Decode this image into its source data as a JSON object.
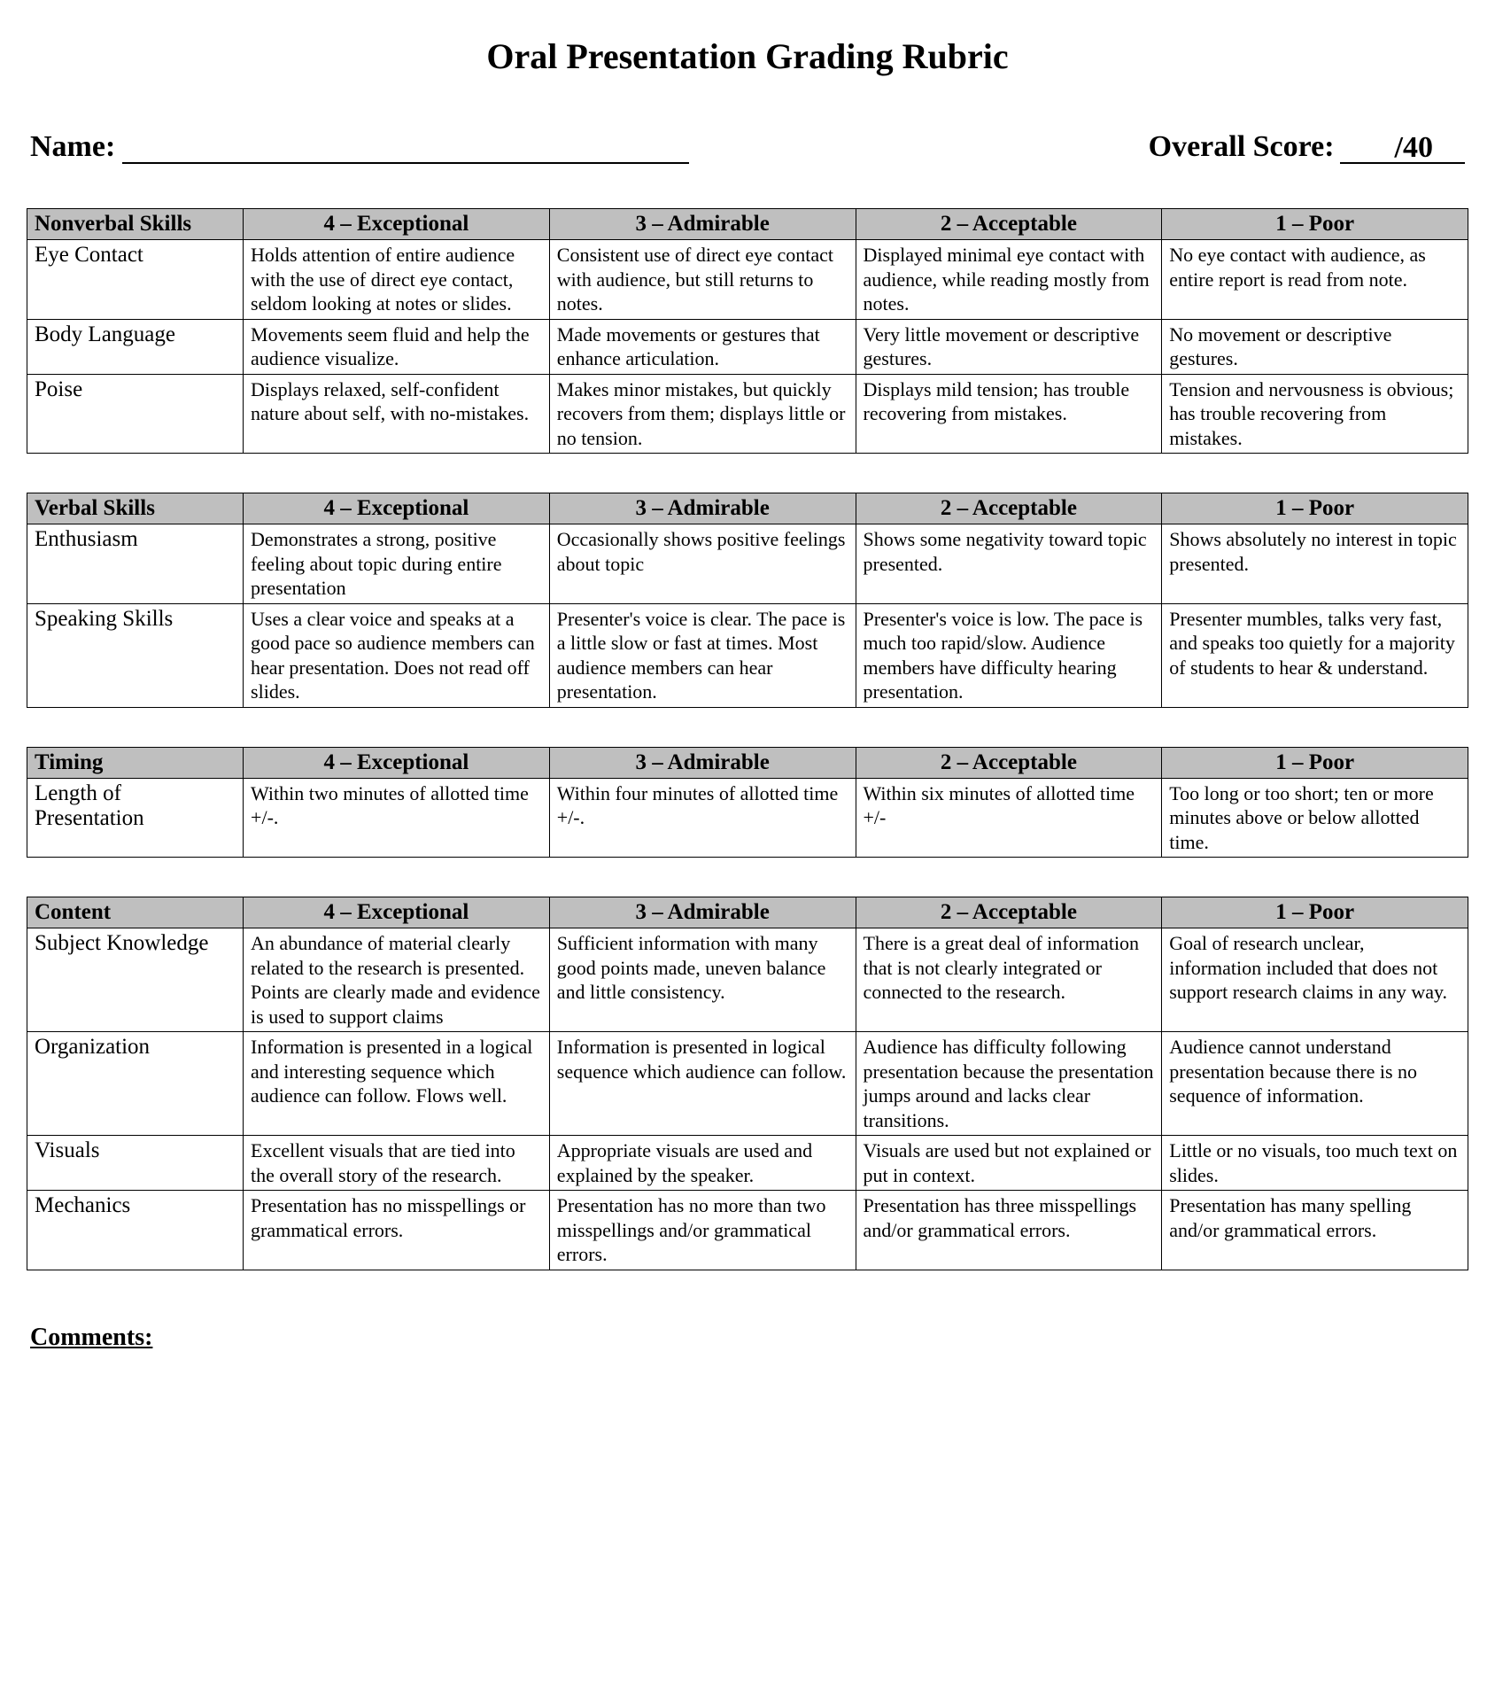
{
  "title": "Oral Presentation Grading Rubric",
  "header": {
    "name_label": "Name:",
    "score_label": "Overall Score:",
    "score_total": "/40"
  },
  "levels": [
    "4 – Exceptional",
    "3 – Admirable",
    "2 – Acceptable",
    "1 – Poor"
  ],
  "sections": [
    {
      "category": "Nonverbal Skills",
      "rows": [
        {
          "label": "Eye Contact",
          "cells": [
            "Holds attention of entire audience with the use of direct eye contact, seldom looking at notes or slides.",
            "Consistent use of direct eye contact with audience, but still returns to notes.",
            "Displayed minimal eye contact with audience, while reading mostly from notes.",
            "No eye contact with audience, as entire report is read from note."
          ]
        },
        {
          "label": "Body Language",
          "cells": [
            "Movements seem fluid and help the audience visualize.",
            "Made movements or gestures that enhance articulation.",
            "Very little movement or descriptive gestures.",
            "No movement or descriptive gestures."
          ]
        },
        {
          "label": "Poise",
          "cells": [
            "Displays relaxed, self-confident nature about self, with no-mistakes.",
            "Makes minor mistakes, but quickly recovers from them; displays little or no tension.",
            "Displays mild tension; has trouble recovering from mistakes.",
            "Tension and nervousness is obvious; has trouble recovering from mistakes."
          ]
        }
      ]
    },
    {
      "category": "Verbal Skills",
      "rows": [
        {
          "label": "Enthusiasm",
          "cells": [
            "Demonstrates a strong, positive feeling about topic during entire presentation",
            "Occasionally shows positive feelings about topic",
            "Shows some negativity toward topic presented.",
            "Shows absolutely no interest in topic presented."
          ]
        },
        {
          "label": "Speaking Skills",
          "cells": [
            "Uses a clear voice and speaks at a good pace so audience members can hear presentation.  Does not read off slides.",
            "Presenter's voice is clear. The pace is a little slow or fast at times.  Most audience members can hear presentation.",
            "Presenter's voice is low. The pace is much too rapid/slow. Audience members have difficulty hearing presentation.",
            "Presenter mumbles, talks very fast, and speaks too quietly for a majority of students to hear & understand."
          ]
        }
      ]
    },
    {
      "category": "Timing",
      "rows": [
        {
          "label": "Length of Presentation",
          "cells": [
            "Within two minutes of allotted time +/-.",
            "Within four minutes of allotted time +/-.",
            "Within six minutes of allotted time +/-",
            "Too long or too short; ten or more minutes above or below allotted time."
          ]
        }
      ]
    },
    {
      "category": "Content",
      "rows": [
        {
          "label": "Subject Knowledge",
          "cells": [
            "An abundance of material clearly related to the research is presented. Points are clearly made and evidence is used to support claims",
            "Sufficient information with many good points made, uneven balance and little consistency.",
            "There is a great deal of information that is not clearly integrated or connected to the research.",
            "Goal of research unclear, information included that does not support research claims in any way."
          ]
        },
        {
          "label": "Organization",
          "cells": [
            "Information is presented in a logical and interesting sequence which audience can follow.  Flows well.",
            "Information is presented in logical sequence which audience can follow.",
            "Audience has difficulty following presentation because the presentation jumps around and lacks clear transitions.",
            "Audience cannot understand presentation because there is no sequence of information."
          ]
        },
        {
          "label": "Visuals",
          "cells": [
            "Excellent visuals that are tied into the overall story of the research.",
            "Appropriate visuals are used and explained by the speaker.",
            "Visuals are used but not explained or put in context.",
            "Little or no visuals, too much text on slides."
          ]
        },
        {
          "label": "Mechanics",
          "cells": [
            "Presentation has no misspellings or grammatical errors.",
            "Presentation has no more than two misspellings and/or grammatical errors.",
            "Presentation has three misspellings and/or grammatical errors.",
            "Presentation has many spelling and/or grammatical errors."
          ]
        }
      ]
    }
  ],
  "comments_label": "Comments:",
  "style": {
    "header_bg": "#bfbfbf",
    "border_color": "#000000",
    "page_bg": "#ffffff",
    "text_color": "#000000",
    "title_fontsize": 40,
    "header_fontsize": 34,
    "th_fontsize": 25,
    "rowlabel_fontsize": 25,
    "cell_fontsize": 22,
    "comments_fontsize": 28
  }
}
